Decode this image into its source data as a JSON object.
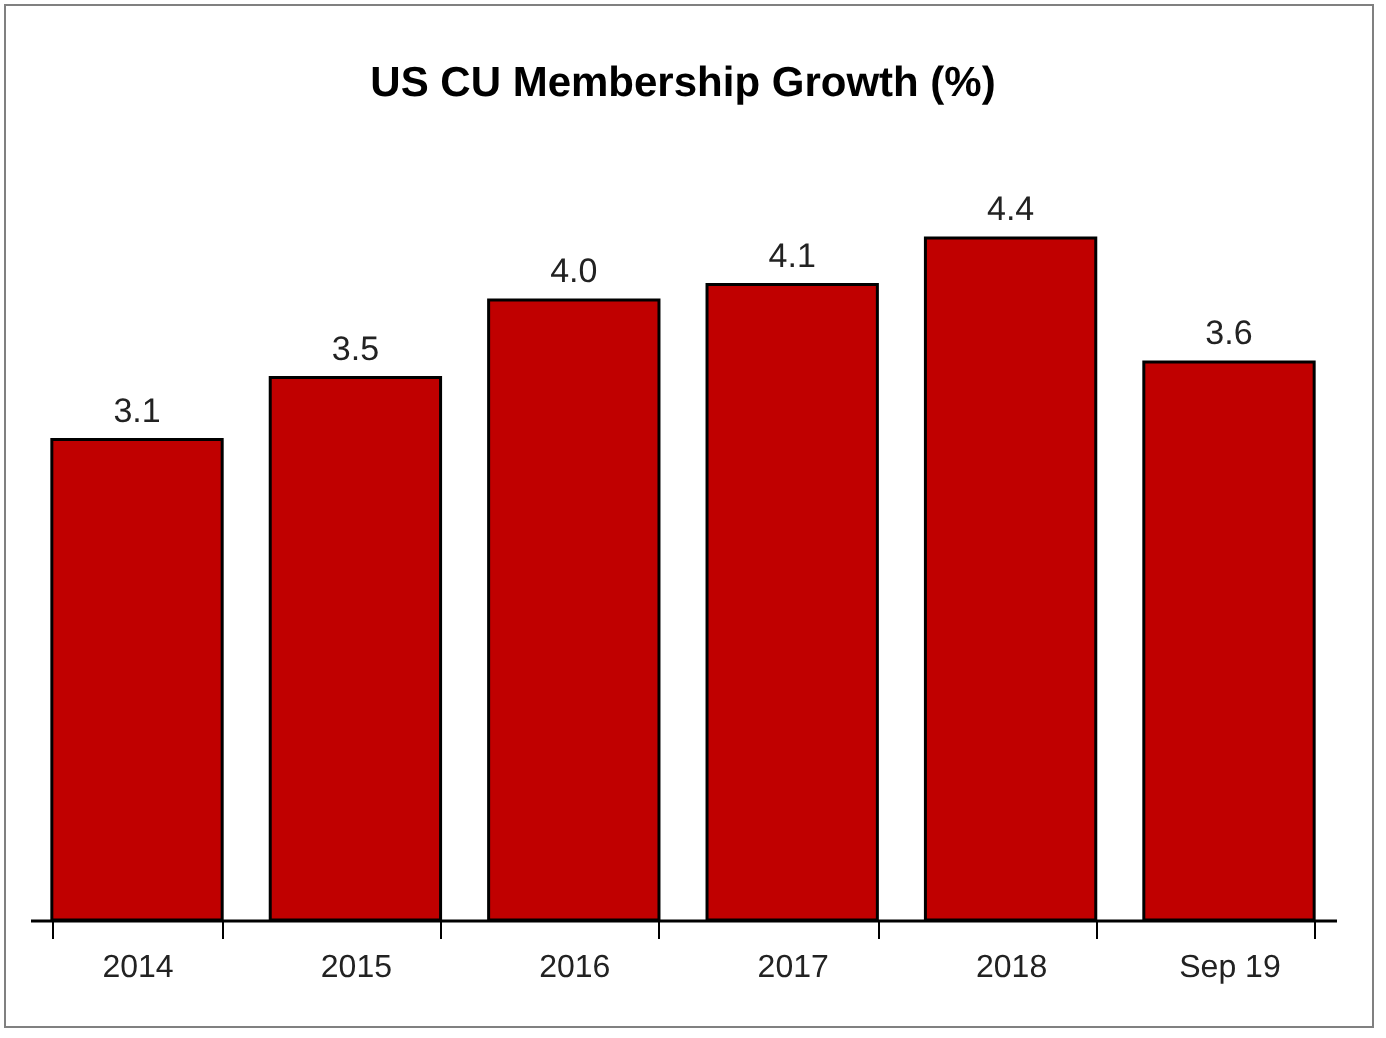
{
  "chart_data": {
    "type": "bar",
    "title": "US CU Membership Growth (%)",
    "categories": [
      "2014",
      "2015",
      "2016",
      "2017",
      "2018",
      "Sep 19"
    ],
    "values": [
      3.1,
      3.5,
      4.0,
      4.1,
      4.4,
      3.6
    ],
    "color": "#c00000",
    "value_labels": [
      "3.1",
      "3.5",
      "4.0",
      "4.1",
      "4.4",
      "3.6"
    ],
    "grid": false
  }
}
